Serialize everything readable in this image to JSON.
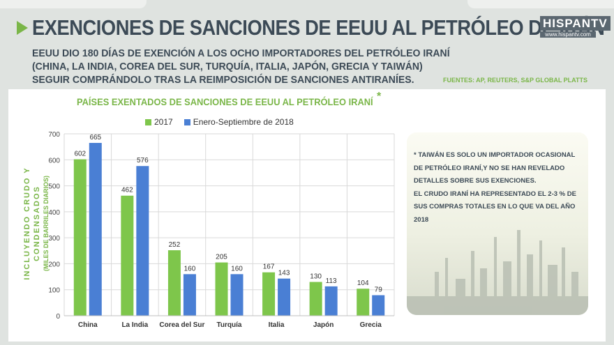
{
  "header": {
    "title": "EXENCIONES DE SANCIONES DE EEUU AL PETRÓLEO DE IRÁN",
    "subtitle_lines": [
      "EEUU DIO 180 DÍAS DE EXENCIÓN A LOS OCHO IMPORTADORES DEL PETRÓLEO IRANÍ",
      "(CHINA, LA INDIA, COREA DEL SUR, TURQUÍA, ITALIA, JAPÓN, GRECIA Y TAIWÁN)",
      "SEGUIR COMPRÁNDOLO TRAS LA REIMPOSICIÓN DE SANCIONES ANTIRANÍES."
    ],
    "sources": "FUENTES: AP, REUTERS, S&P GLOBAL PLATTS",
    "logo": {
      "name": "HISPANTV",
      "url": "www.hispantv.com"
    }
  },
  "note": {
    "lines": [
      "* TAIWÁN ES SOLO UN IMPORTADOR OCASIONAL",
      "DE PETRÓLEO IRANÍ,Y NO SE HAN REVELADO",
      "DETALLES SOBRE SUS EXENCIONES.",
      "EL CRUDO IRANÍ HA REPRESENTADO EL 2-3 % DE",
      "SUS COMPRAS TOTALES EN LO QUE VA DEL AÑO",
      " 2018"
    ]
  },
  "chart_data": {
    "type": "bar",
    "title": "PAÍSES EXENTADOS DE SANCIONES DE EEUU AL PETRÓLEO IRANÍ",
    "title_mark": "*",
    "ylabel": "INCLUYENDO CRUDO Y CONDENSADOS",
    "ylabel_sub": "(MILES DE BARRILES DIARIOS)",
    "xlabel": "",
    "categories": [
      "China",
      "La India",
      "Corea del Sur",
      "Turquía",
      "Italia",
      "Japón",
      "Grecia"
    ],
    "series": [
      {
        "name": "2017",
        "color": "#7ec64b",
        "values": [
          602,
          462,
          252,
          205,
          167,
          130,
          104
        ]
      },
      {
        "name": "Enero-Septiembre de 2018",
        "color": "#4a7fd4",
        "values": [
          665,
          576,
          160,
          160,
          143,
          113,
          79
        ]
      }
    ],
    "ylim": [
      0,
      700
    ],
    "yticks": [
      0,
      100,
      200,
      300,
      400,
      500,
      600,
      700
    ],
    "grid": true,
    "legend_position": "top"
  }
}
